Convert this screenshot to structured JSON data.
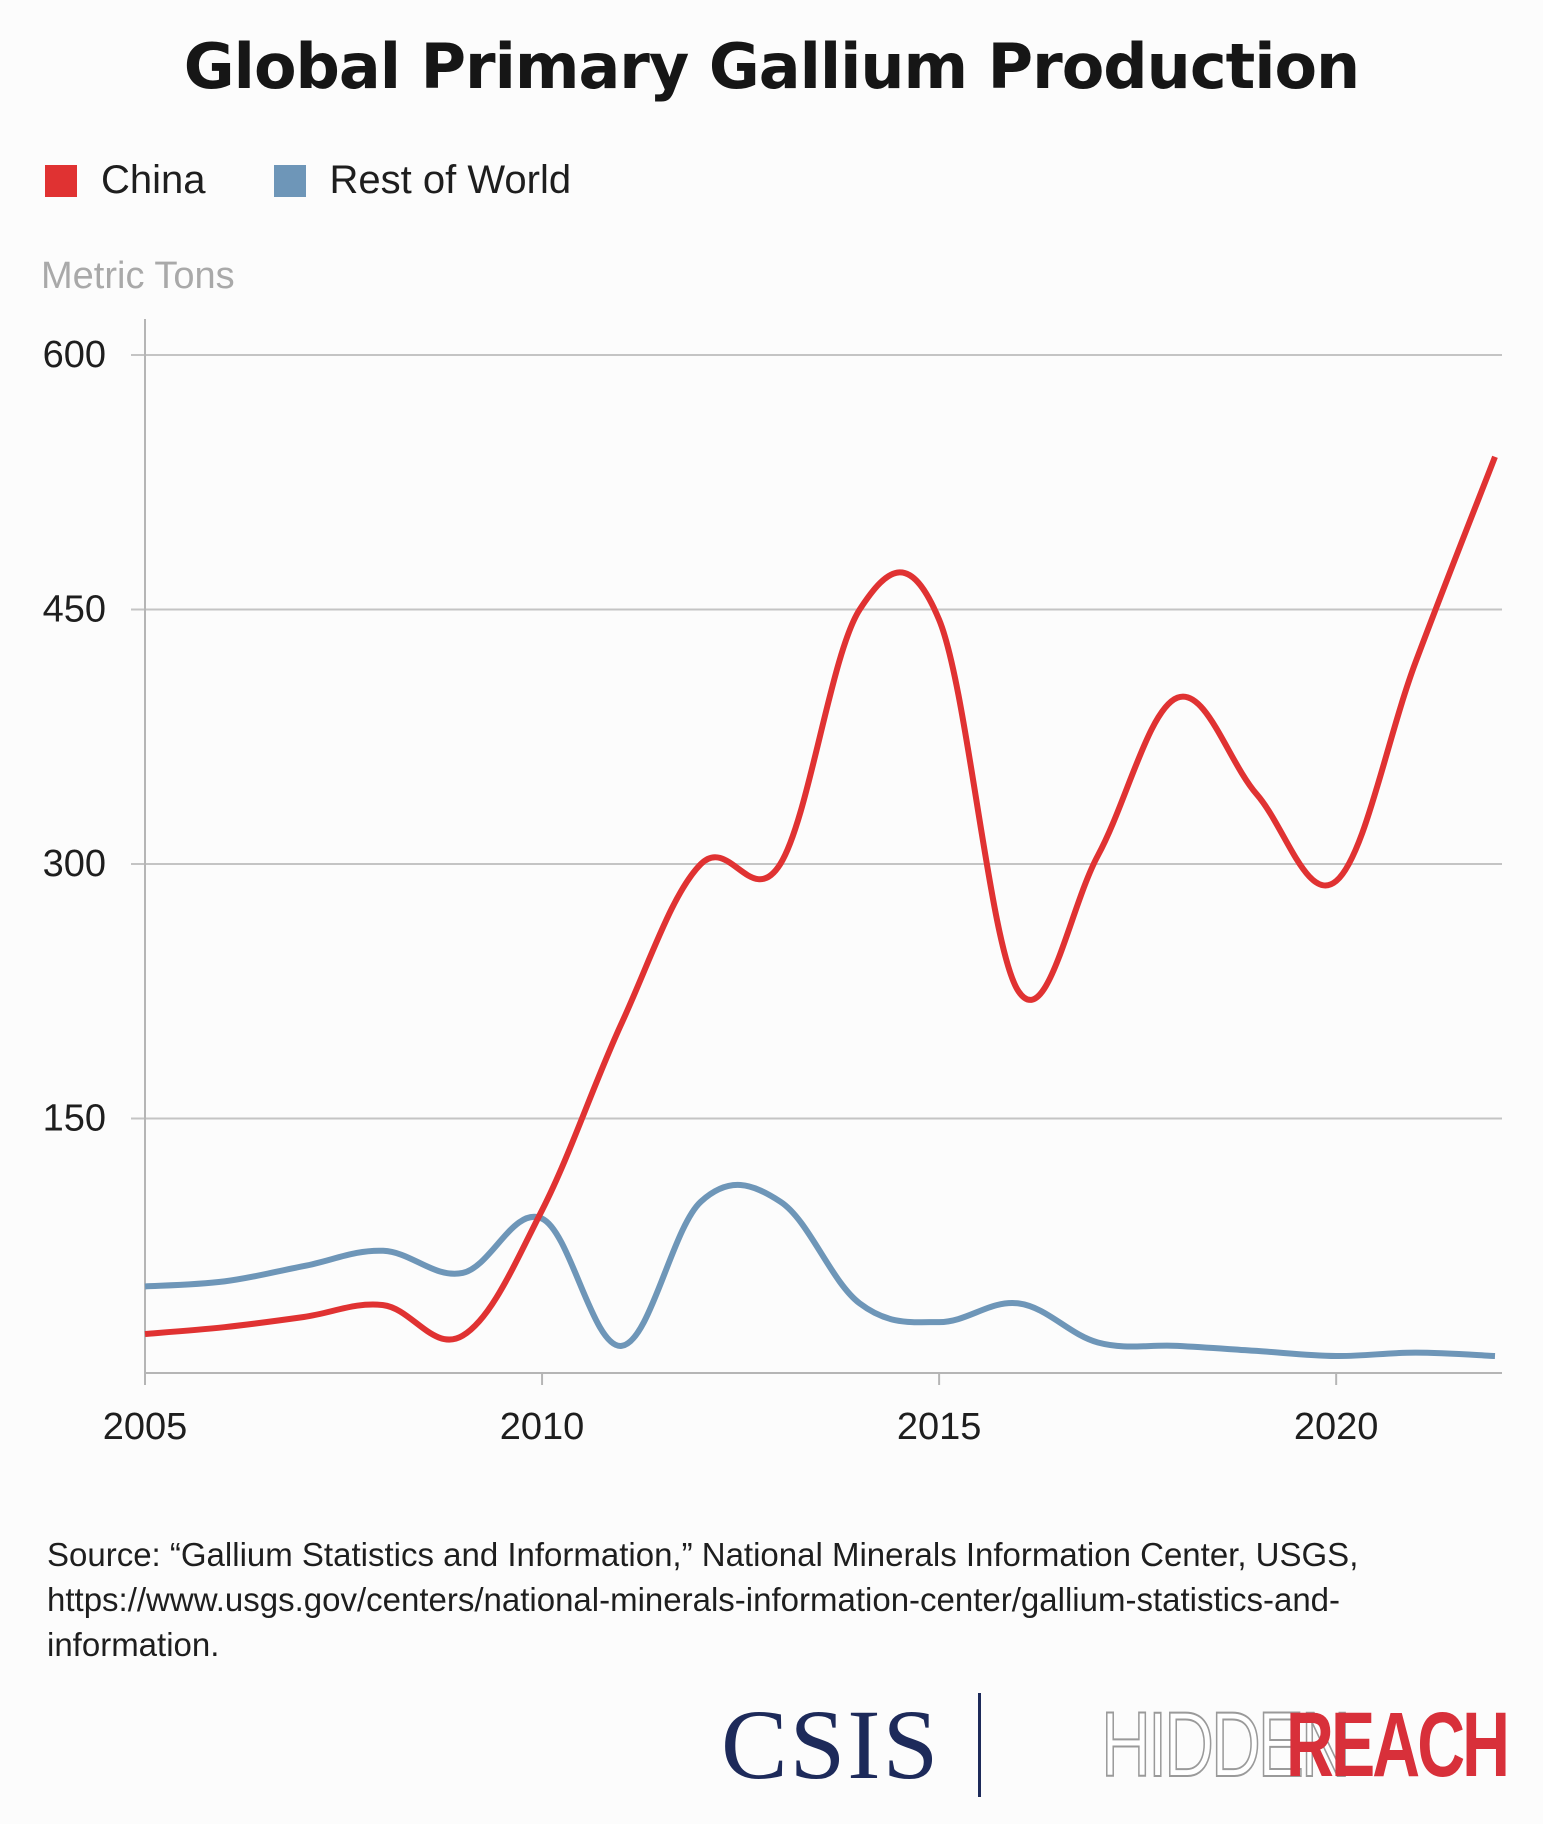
{
  "chart_data": {
    "type": "line",
    "title": "Global Primary Gallium Production",
    "xlabel": "",
    "ylabel": "Metric Tons",
    "x": [
      2005,
      2006,
      2007,
      2008,
      2009,
      2010,
      2011,
      2012,
      2013,
      2014,
      2015,
      2016,
      2017,
      2018,
      2019,
      2020,
      2021,
      2022
    ],
    "series": [
      {
        "name": "China",
        "color": "#e03232",
        "values": [
          23,
          27,
          33,
          40,
          22,
          96,
          206,
          300,
          300,
          450,
          444,
          225,
          305,
          398,
          341,
          290,
          419,
          540
        ]
      },
      {
        "name": "Rest of World",
        "color": "#6e96b8",
        "values": [
          51,
          54,
          63,
          72,
          59,
          91,
          16,
          101,
          101,
          41,
          30,
          41,
          18,
          16,
          13,
          10,
          12,
          10
        ]
      }
    ],
    "xlim": [
      2005,
      2022
    ],
    "ylim": [
      0,
      600
    ],
    "xticks": [
      2005,
      2010,
      2015,
      2020
    ],
    "yticks": [
      150,
      300,
      450,
      600
    ],
    "xtick_labels": [
      "2005",
      "2010",
      "2015",
      "2020"
    ],
    "ytick_labels": [
      "150",
      "300",
      "450",
      "600"
    ],
    "grid": true,
    "legend_position": "top-left"
  },
  "legend": {
    "items": [
      {
        "label": "China",
        "color": "#e03232"
      },
      {
        "label": "Rest of World",
        "color": "#6e96b8"
      }
    ]
  },
  "source_text": "Source: “Gallium Statistics and Information,” National Minerals Information Center, USGS, https://www.usgs.gov/centers/national-minerals-information-center/gallium-statistics-and-information.",
  "logos": {
    "org": "CSIS",
    "series_part1": "HIDDEN",
    "series_part2": "REACH"
  },
  "colors": {
    "grid": "#c4c4c4",
    "axis": "#b5b5b5",
    "csis_navy": "#1d2a5a",
    "reach_red": "#d8303a"
  }
}
